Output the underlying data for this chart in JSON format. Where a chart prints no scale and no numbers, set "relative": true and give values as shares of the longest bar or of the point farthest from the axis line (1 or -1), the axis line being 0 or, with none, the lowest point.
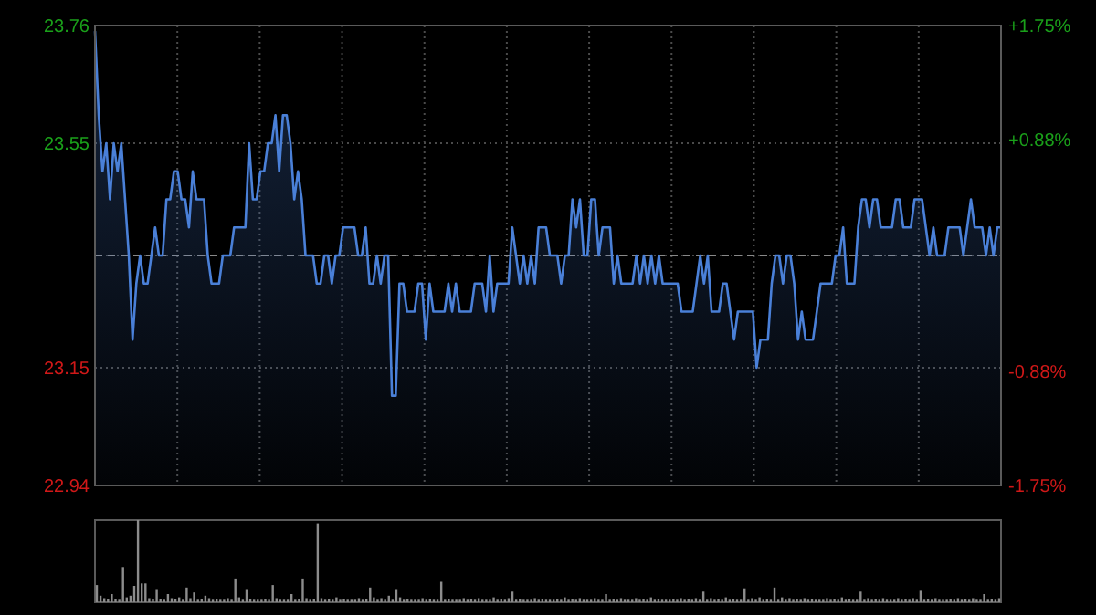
{
  "chart_data": [
    {
      "type": "area",
      "categories": [
        null,
        null,
        null,
        null,
        null,
        null,
        null,
        null,
        null,
        null,
        null,
        null,
        null,
        null,
        null,
        null,
        null,
        null,
        null,
        null,
        null,
        null,
        null,
        null,
        null,
        null,
        null,
        null,
        null,
        null,
        null,
        null,
        null,
        null,
        null,
        null,
        null,
        null,
        null,
        null,
        null,
        null,
        null,
        null,
        null,
        null,
        null,
        null,
        null,
        null,
        null,
        null,
        null,
        null,
        null,
        null,
        null,
        null,
        null,
        null,
        null,
        null,
        null,
        null,
        null,
        null,
        null,
        null,
        null,
        null,
        null,
        null,
        null,
        null,
        null,
        null,
        null,
        null,
        null,
        null,
        null,
        null,
        null,
        null,
        null,
        null,
        null,
        null,
        null,
        null,
        null,
        null,
        null,
        null,
        null,
        null,
        null,
        null,
        null,
        null,
        null,
        null,
        null,
        null,
        null,
        null,
        null,
        null,
        null,
        null,
        null,
        null,
        null,
        null,
        null,
        null,
        null,
        null,
        null,
        null,
        null,
        null,
        null,
        null,
        null,
        null,
        null,
        null,
        null,
        null,
        null,
        null,
        null,
        null,
        null,
        null,
        null,
        null,
        null,
        null,
        null,
        null,
        null,
        null,
        null,
        null,
        null,
        null,
        null,
        null,
        null,
        null,
        null,
        null,
        null,
        null,
        null,
        null,
        null,
        null,
        null,
        null,
        null,
        null,
        null,
        null,
        null,
        null,
        null,
        null,
        null,
        null,
        null,
        null,
        null,
        null,
        null,
        null,
        null,
        null,
        null,
        null,
        null,
        null,
        null,
        null,
        null,
        null,
        null,
        null,
        null,
        null,
        null,
        null,
        null,
        null,
        null,
        null,
        null,
        null,
        null,
        null,
        null,
        null,
        null,
        null,
        null,
        null,
        null,
        null,
        null,
        null,
        null,
        null,
        null,
        null,
        null,
        null,
        null,
        null,
        null,
        null,
        null,
        null,
        null,
        null,
        null,
        null,
        null,
        null,
        null,
        null,
        null,
        null,
        null,
        null,
        null,
        null,
        null,
        null,
        null,
        null
      ],
      "ylim": [
        22.94,
        23.76
      ],
      "yticks": [
        22.94,
        23.15,
        {
          "value": 23.35,
          "label": null
        },
        23.55,
        23.76
      ],
      "y2lim": [
        -1.75,
        1.75
      ],
      "y2ticks": [
        {
          "value": -1.75,
          "label": "-1.75%"
        },
        {
          "value": -0.88,
          "label": "-0.88%"
        },
        {
          "value": 0,
          "label": null
        },
        {
          "value": 0.88,
          "label": "+0.88%"
        },
        {
          "value": 1.75,
          "label": "+1.75%"
        }
      ],
      "grid": true,
      "ref_lines": [
        {
          "axis": "y",
          "value": 23.35,
          "line_style": "dashed"
        }
      ],
      "series": [
        {
          "color": "#4a80d8",
          "values": [
            23.75,
            23.6,
            23.5,
            23.55,
            23.45,
            23.55,
            23.5,
            23.55,
            23.45,
            23.35,
            23.2,
            23.3,
            23.35,
            23.3,
            23.3,
            23.35,
            23.4,
            23.35,
            23.35,
            23.45,
            23.45,
            23.5,
            23.5,
            23.45,
            23.45,
            23.4,
            23.5,
            23.45,
            23.45,
            23.45,
            23.35,
            23.3,
            23.3,
            23.3,
            23.35,
            23.35,
            23.35,
            23.4,
            23.4,
            23.4,
            23.4,
            23.55,
            23.45,
            23.45,
            23.5,
            23.5,
            23.55,
            23.55,
            23.6,
            23.5,
            23.6,
            23.6,
            23.55,
            23.45,
            23.5,
            23.45,
            23.35,
            23.35,
            23.35,
            23.3,
            23.3,
            23.35,
            23.35,
            23.3,
            23.35,
            23.35,
            23.4,
            23.4,
            23.4,
            23.4,
            23.35,
            23.35,
            23.4,
            23.3,
            23.3,
            23.35,
            23.3,
            23.35,
            23.35,
            23.1,
            23.1,
            23.3,
            23.3,
            23.25,
            23.25,
            23.25,
            23.3,
            23.3,
            23.2,
            23.3,
            23.25,
            23.25,
            23.25,
            23.25,
            23.3,
            23.25,
            23.3,
            23.25,
            23.25,
            23.25,
            23.25,
            23.3,
            23.3,
            23.3,
            23.25,
            23.35,
            23.25,
            23.3,
            23.3,
            23.3,
            23.3,
            23.4,
            23.35,
            23.3,
            23.35,
            23.3,
            23.35,
            23.3,
            23.4,
            23.4,
            23.4,
            23.35,
            23.35,
            23.35,
            23.3,
            23.35,
            23.35,
            23.45,
            23.4,
            23.45,
            23.35,
            23.35,
            23.45,
            23.45,
            23.35,
            23.4,
            23.4,
            23.4,
            23.3,
            23.35,
            23.3,
            23.3,
            23.3,
            23.3,
            23.35,
            23.3,
            23.35,
            23.3,
            23.35,
            23.3,
            23.35,
            23.3,
            23.3,
            23.3,
            23.3,
            23.3,
            23.25,
            23.25,
            23.25,
            23.25,
            23.3,
            23.35,
            23.3,
            23.35,
            23.25,
            23.25,
            23.25,
            23.3,
            23.3,
            23.25,
            23.2,
            23.25,
            23.25,
            23.25,
            23.25,
            23.25,
            23.15,
            23.2,
            23.2,
            23.2,
            23.3,
            23.35,
            23.35,
            23.3,
            23.35,
            23.35,
            23.3,
            23.2,
            23.25,
            23.2,
            23.2,
            23.2,
            23.25,
            23.3,
            23.3,
            23.3,
            23.3,
            23.35,
            23.35,
            23.4,
            23.3,
            23.3,
            23.3,
            23.4,
            23.45,
            23.45,
            23.4,
            23.45,
            23.45,
            23.4,
            23.4,
            23.4,
            23.4,
            23.45,
            23.45,
            23.4,
            23.4,
            23.4,
            23.45,
            23.45,
            23.45,
            23.4,
            23.35,
            23.4,
            23.35,
            23.35,
            23.35,
            23.4,
            23.4,
            23.4,
            23.4,
            23.35,
            23.4,
            23.45,
            23.4,
            23.4,
            23.4,
            23.35,
            23.4,
            23.35,
            23.4,
            23.4
          ]
        }
      ]
    },
    {
      "type": "bar",
      "relative": true,
      "color": "#8c8c8c",
      "categories": [
        null,
        null,
        null,
        null,
        null,
        null,
        null,
        null,
        null,
        null,
        null,
        null,
        null,
        null,
        null,
        null,
        null,
        null,
        null,
        null,
        null,
        null,
        null,
        null,
        null,
        null,
        null,
        null,
        null,
        null,
        null,
        null,
        null,
        null,
        null,
        null,
        null,
        null,
        null,
        null,
        null,
        null,
        null,
        null,
        null,
        null,
        null,
        null,
        null,
        null,
        null,
        null,
        null,
        null,
        null,
        null,
        null,
        null,
        null,
        null,
        null,
        null,
        null,
        null,
        null,
        null,
        null,
        null,
        null,
        null,
        null,
        null,
        null,
        null,
        null,
        null,
        null,
        null,
        null,
        null,
        null,
        null,
        null,
        null,
        null,
        null,
        null,
        null,
        null,
        null,
        null,
        null,
        null,
        null,
        null,
        null,
        null,
        null,
        null,
        null,
        null,
        null,
        null,
        null,
        null,
        null,
        null,
        null,
        null,
        null,
        null,
        null,
        null,
        null,
        null,
        null,
        null,
        null,
        null,
        null,
        null,
        null,
        null,
        null,
        null,
        null,
        null,
        null,
        null,
        null,
        null,
        null,
        null,
        null,
        null,
        null,
        null,
        null,
        null,
        null,
        null,
        null,
        null,
        null,
        null,
        null,
        null,
        null,
        null,
        null,
        null,
        null,
        null,
        null,
        null,
        null,
        null,
        null,
        null,
        null,
        null,
        null,
        null,
        null,
        null,
        null,
        null,
        null,
        null,
        null,
        null,
        null,
        null,
        null,
        null,
        null,
        null,
        null,
        null,
        null,
        null,
        null,
        null,
        null,
        null,
        null,
        null,
        null,
        null,
        null,
        null,
        null,
        null,
        null,
        null,
        null,
        null,
        null,
        null,
        null,
        null,
        null,
        null,
        null,
        null,
        null,
        null,
        null,
        null,
        null,
        null,
        null,
        null,
        null,
        null,
        null,
        null,
        null,
        null,
        null,
        null,
        null,
        null,
        null,
        null,
        null,
        null,
        null,
        null,
        null,
        null,
        null,
        null,
        null,
        null,
        null,
        null,
        null,
        null,
        null,
        null,
        null
      ],
      "values": [
        0.21,
        0.08,
        0.05,
        0.04,
        0.1,
        0.04,
        0.03,
        0.43,
        0.06,
        0.08,
        0.2,
        1,
        0.23,
        0.23,
        0.05,
        0.04,
        0.15,
        0.04,
        0.03,
        0.1,
        0.05,
        0.04,
        0.06,
        0.03,
        0.18,
        0.05,
        0.12,
        0.03,
        0.04,
        0.08,
        0.05,
        0.03,
        0.04,
        0.03,
        0.03,
        0.05,
        0.03,
        0.29,
        0.06,
        0.03,
        0.15,
        0.04,
        0.03,
        0.03,
        0.03,
        0.04,
        0.03,
        0.21,
        0.05,
        0.03,
        0.03,
        0.03,
        0.1,
        0.03,
        0.04,
        0.29,
        0.05,
        0.03,
        0.04,
        0.96,
        0.05,
        0.03,
        0.04,
        0.03,
        0.06,
        0.03,
        0.04,
        0.03,
        0.03,
        0.03,
        0.05,
        0.03,
        0.04,
        0.18,
        0.06,
        0.03,
        0.05,
        0.03,
        0.08,
        0.03,
        0.15,
        0.06,
        0.03,
        0.04,
        0.03,
        0.03,
        0.03,
        0.05,
        0.03,
        0.04,
        0.03,
        0.03,
        0.25,
        0.03,
        0.04,
        0.03,
        0.03,
        0.03,
        0.05,
        0.03,
        0.04,
        0.03,
        0.05,
        0.03,
        0.03,
        0.03,
        0.06,
        0.03,
        0.04,
        0.03,
        0.05,
        0.13,
        0.03,
        0.04,
        0.03,
        0.03,
        0.03,
        0.05,
        0.03,
        0.04,
        0.03,
        0.03,
        0.03,
        0.04,
        0.03,
        0.06,
        0.03,
        0.04,
        0.03,
        0.05,
        0.03,
        0.03,
        0.03,
        0.05,
        0.03,
        0.03,
        0.1,
        0.03,
        0.04,
        0.03,
        0.05,
        0.03,
        0.03,
        0.03,
        0.05,
        0.03,
        0.04,
        0.03,
        0.06,
        0.03,
        0.04,
        0.03,
        0.03,
        0.03,
        0.04,
        0.03,
        0.05,
        0.03,
        0.04,
        0.03,
        0.05,
        0.03,
        0.13,
        0.03,
        0.05,
        0.03,
        0.04,
        0.03,
        0.06,
        0.03,
        0.04,
        0.03,
        0.03,
        0.17,
        0.03,
        0.05,
        0.03,
        0.06,
        0.03,
        0.04,
        0.03,
        0.18,
        0.03,
        0.06,
        0.03,
        0.05,
        0.03,
        0.04,
        0.03,
        0.05,
        0.03,
        0.04,
        0.03,
        0.03,
        0.03,
        0.05,
        0.03,
        0.04,
        0.03,
        0.06,
        0.03,
        0.04,
        0.03,
        0.03,
        0.13,
        0.03,
        0.05,
        0.03,
        0.04,
        0.03,
        0.05,
        0.03,
        0.03,
        0.03,
        0.05,
        0.03,
        0.04,
        0.03,
        0.05,
        0.03,
        0.14,
        0.03,
        0.04,
        0.03,
        0.05,
        0.03,
        0.03,
        0.03,
        0.04,
        0.03,
        0.05,
        0.03,
        0.04,
        0.03,
        0.05,
        0.03,
        0.03,
        0.1,
        0.03,
        0.04,
        0.03,
        0.05
      ]
    }
  ]
}
